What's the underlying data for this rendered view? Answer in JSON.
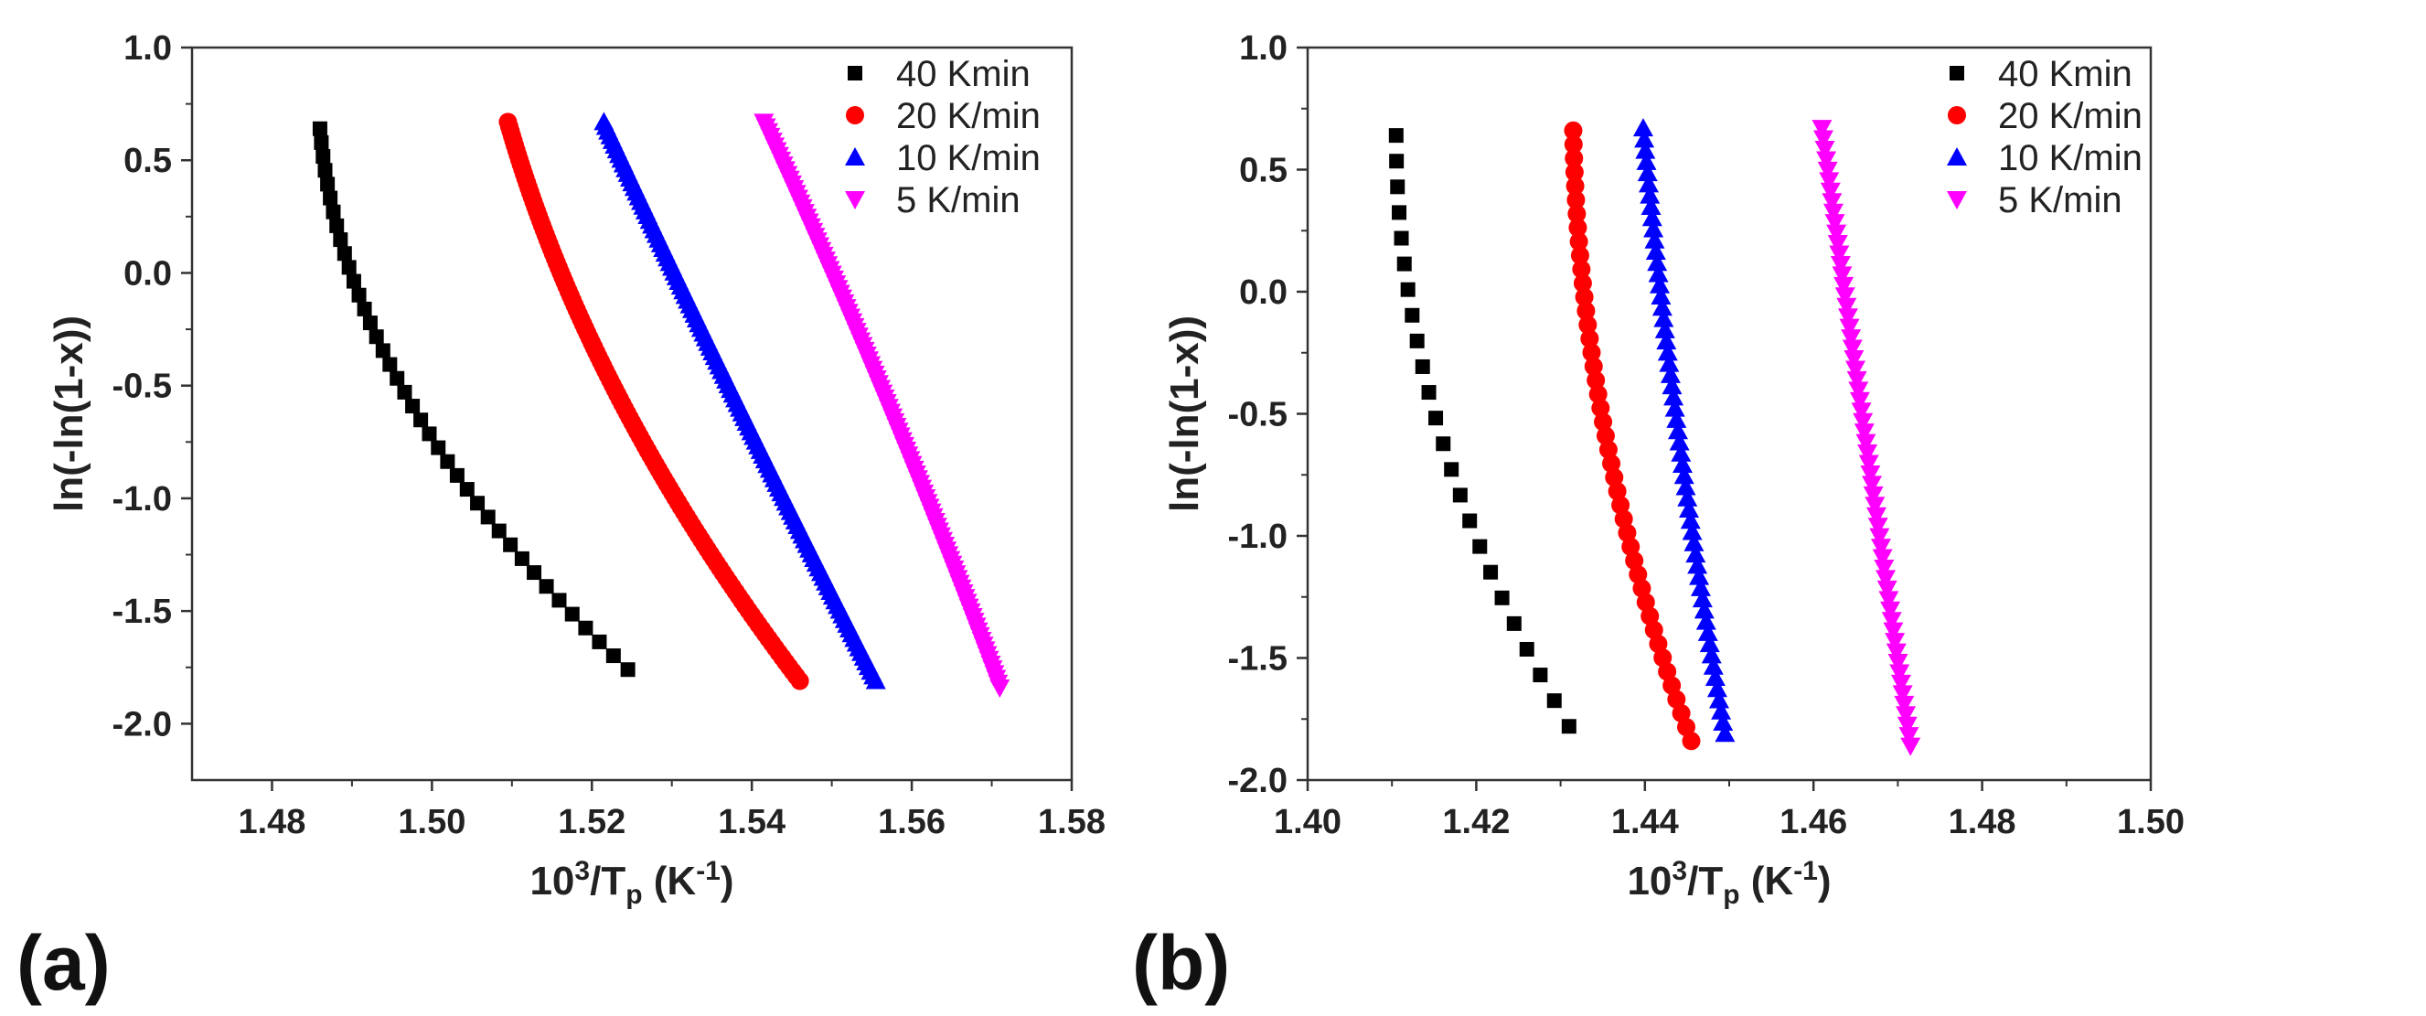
{
  "figure": {
    "panel_labels": [
      "(a)",
      "(b)"
    ]
  },
  "chart_data": [
    {
      "type": "scatter",
      "panel": "(a)",
      "title": "",
      "xlabel": "10³/T_p (K⁻¹)",
      "xlabel_parts": {
        "base": "10",
        "sup1": "3",
        "mid": "/T",
        "sub": "p",
        "unit_open": " (K",
        "sup2": "-1",
        "unit_close": ")"
      },
      "ylabel": "ln(-ln(1-x))",
      "xlim": [
        1.47,
        1.58
      ],
      "ylim": [
        -2.25,
        1.0
      ],
      "xticks": [
        1.48,
        1.5,
        1.52,
        1.54,
        1.56,
        1.58
      ],
      "xtick_labels": [
        "1.48",
        "1.50",
        "1.52",
        "1.54",
        "1.56",
        "1.58"
      ],
      "yticks": [
        1.0,
        0.5,
        0.0,
        -0.5,
        -1.0,
        -1.5,
        -2.0
      ],
      "ytick_labels": [
        "1.0",
        "0.5",
        "0.0",
        "-0.5",
        "-1.0",
        "-1.5",
        "-2.0"
      ],
      "legend_position": "top-right",
      "series": [
        {
          "name": "40 Kmin",
          "marker": "square",
          "color": "#000000",
          "x_start": 1.486,
          "x_end": 1.5245,
          "y_start": 0.64,
          "y_end": -1.76,
          "count": 40,
          "curve": -0.85
        },
        {
          "name": "20 K/min",
          "marker": "circle",
          "color": "#ff0000",
          "x_start": 1.5095,
          "x_end": 1.546,
          "y_start": 0.67,
          "y_end": -1.81,
          "count": 120,
          "curve": -0.45
        },
        {
          "name": "10 K/min",
          "marker": "triangle-up",
          "color": "#0000ff",
          "x_start": 1.5215,
          "x_end": 1.5555,
          "y_start": 0.67,
          "y_end": -1.81,
          "count": 120,
          "curve": -0.05
        },
        {
          "name": "5 K/min",
          "marker": "triangle-down",
          "color": "#ff00ff",
          "x_start": 1.5415,
          "x_end": 1.571,
          "y_start": 0.67,
          "y_end": -1.84,
          "count": 120,
          "curve": 0.1
        }
      ]
    },
    {
      "type": "scatter",
      "panel": "(b)",
      "title": "",
      "xlabel": "10³/T_p (K⁻¹)",
      "xlabel_parts": {
        "base": "10",
        "sup1": "3",
        "mid": "/T",
        "sub": "p",
        "unit_open": " (K",
        "sup2": "-1",
        "unit_close": ")"
      },
      "ylabel": "ln(-ln(1-x))",
      "xlim": [
        1.4,
        1.5
      ],
      "ylim": [
        -2.0,
        1.0
      ],
      "xticks": [
        1.4,
        1.42,
        1.44,
        1.46,
        1.48,
        1.5
      ],
      "xtick_labels": [
        "1.40",
        "1.42",
        "1.44",
        "1.46",
        "1.48",
        "1.50"
      ],
      "yticks": [
        1.0,
        0.5,
        0.0,
        -0.5,
        -1.0,
        -1.5,
        -2.0
      ],
      "ytick_labels": [
        "1.0",
        "0.5",
        "0.0",
        "-0.5",
        "-1.0",
        "-1.5",
        "-2.0"
      ],
      "legend_position": "top-right",
      "series": [
        {
          "name": "40 Kmin",
          "marker": "square",
          "color": "#000000",
          "x_start": 1.4105,
          "x_end": 1.431,
          "y_start": 0.64,
          "y_end": -1.78,
          "count": 24,
          "curve": -1.0
        },
        {
          "name": "20 K/min",
          "marker": "circle",
          "color": "#ff0000",
          "x_start": 1.4315,
          "x_end": 1.4455,
          "y_start": 0.66,
          "y_end": -1.84,
          "count": 45,
          "curve": -0.9
        },
        {
          "name": "10 K/min",
          "marker": "triangle-up",
          "color": "#0000ff",
          "x_start": 1.4398,
          "x_end": 1.4495,
          "y_start": 0.67,
          "y_end": -1.81,
          "count": 55,
          "curve": -0.3
        },
        {
          "name": "5 K/min",
          "marker": "triangle-down",
          "color": "#ff00ff",
          "x_start": 1.461,
          "x_end": 1.4715,
          "y_start": 0.67,
          "y_end": -1.86,
          "count": 60,
          "curve": -0.05
        }
      ]
    }
  ]
}
